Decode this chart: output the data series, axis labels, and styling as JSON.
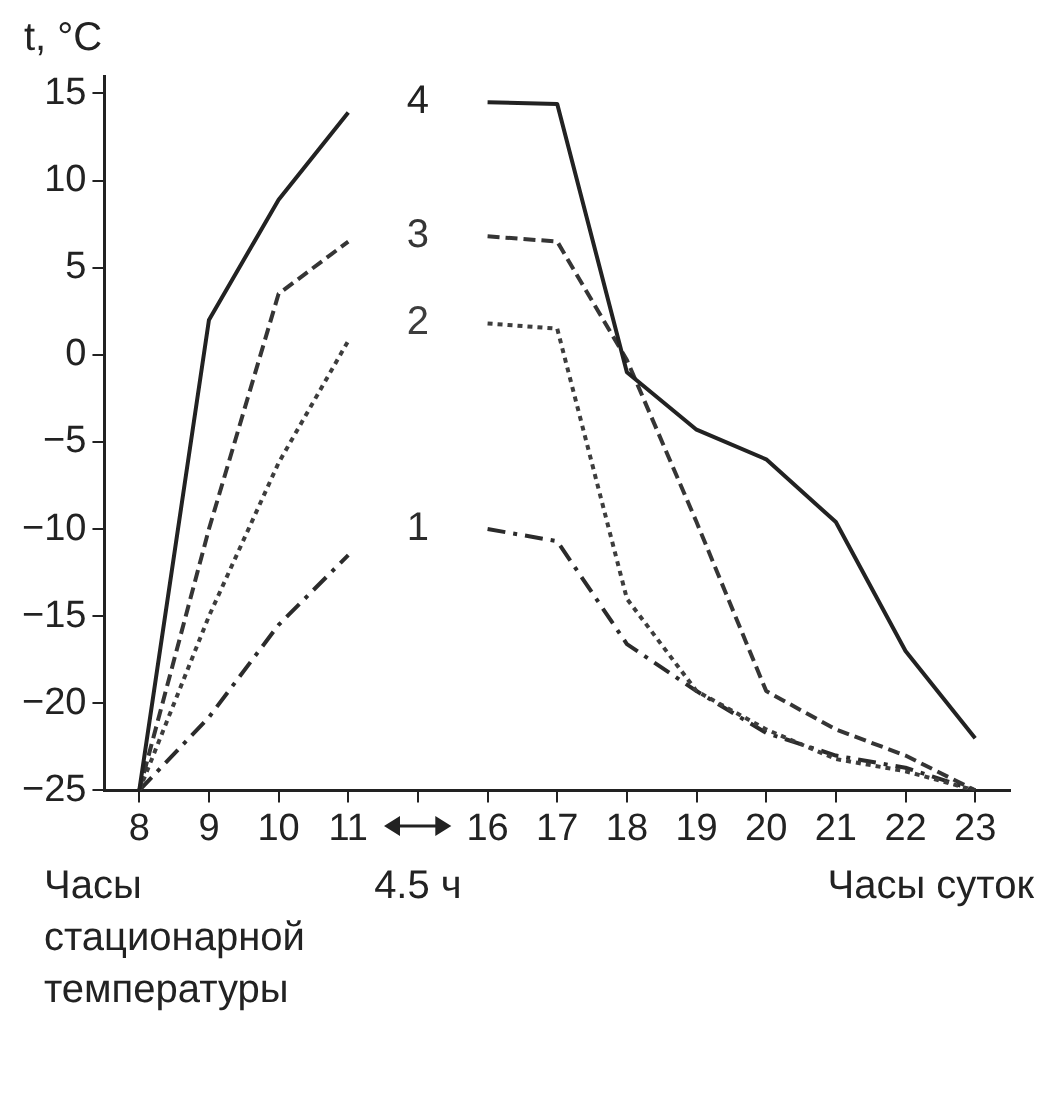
{
  "chart_data": {
    "type": "line",
    "ylabel": "t, °C",
    "xlabel": "Часы суток",
    "annotations": [
      "Часы стационарной температуры",
      "4.5 ч"
    ],
    "categories": [
      "8",
      "9",
      "10",
      "11",
      null,
      "16",
      "17",
      "18",
      "19",
      "20",
      "21",
      "22",
      "23"
    ],
    "ylim": [
      -25,
      16
    ],
    "yticks": [
      -25,
      -20,
      -15,
      -10,
      -5,
      0,
      5,
      10,
      15
    ],
    "grid": false,
    "legend": false,
    "marker": "none",
    "series": [
      {
        "name": "1",
        "color": "#2b2b2b",
        "line_style": "dashdot",
        "values": [
          -25,
          -20.8,
          -15.5,
          -11.5,
          null,
          -10,
          -10.7,
          -16.6,
          -19.3,
          -21.7,
          -23,
          -23.7,
          -25
        ]
      },
      {
        "name": "2",
        "color": "#3d3d3d",
        "line_style": "dotted",
        "values": [
          -25,
          -15,
          -6.2,
          0.8,
          null,
          1.8,
          1.5,
          -14,
          -19.3,
          -21.5,
          -23.2,
          -23.9,
          -25
        ]
      },
      {
        "name": "3",
        "color": "#353535",
        "line_style": "dashed",
        "values": [
          -25,
          -10,
          3.5,
          6.5,
          null,
          6.8,
          6.5,
          -0.3,
          -9.6,
          -19.3,
          -21.5,
          -23,
          -25
        ]
      },
      {
        "name": "4",
        "color": "#222222",
        "line_style": "solid",
        "values": [
          -25,
          2,
          8.9,
          13.9,
          null,
          14.5,
          14.4,
          -1,
          -4.3,
          -6,
          -9.6,
          -17,
          -22
        ]
      }
    ]
  }
}
